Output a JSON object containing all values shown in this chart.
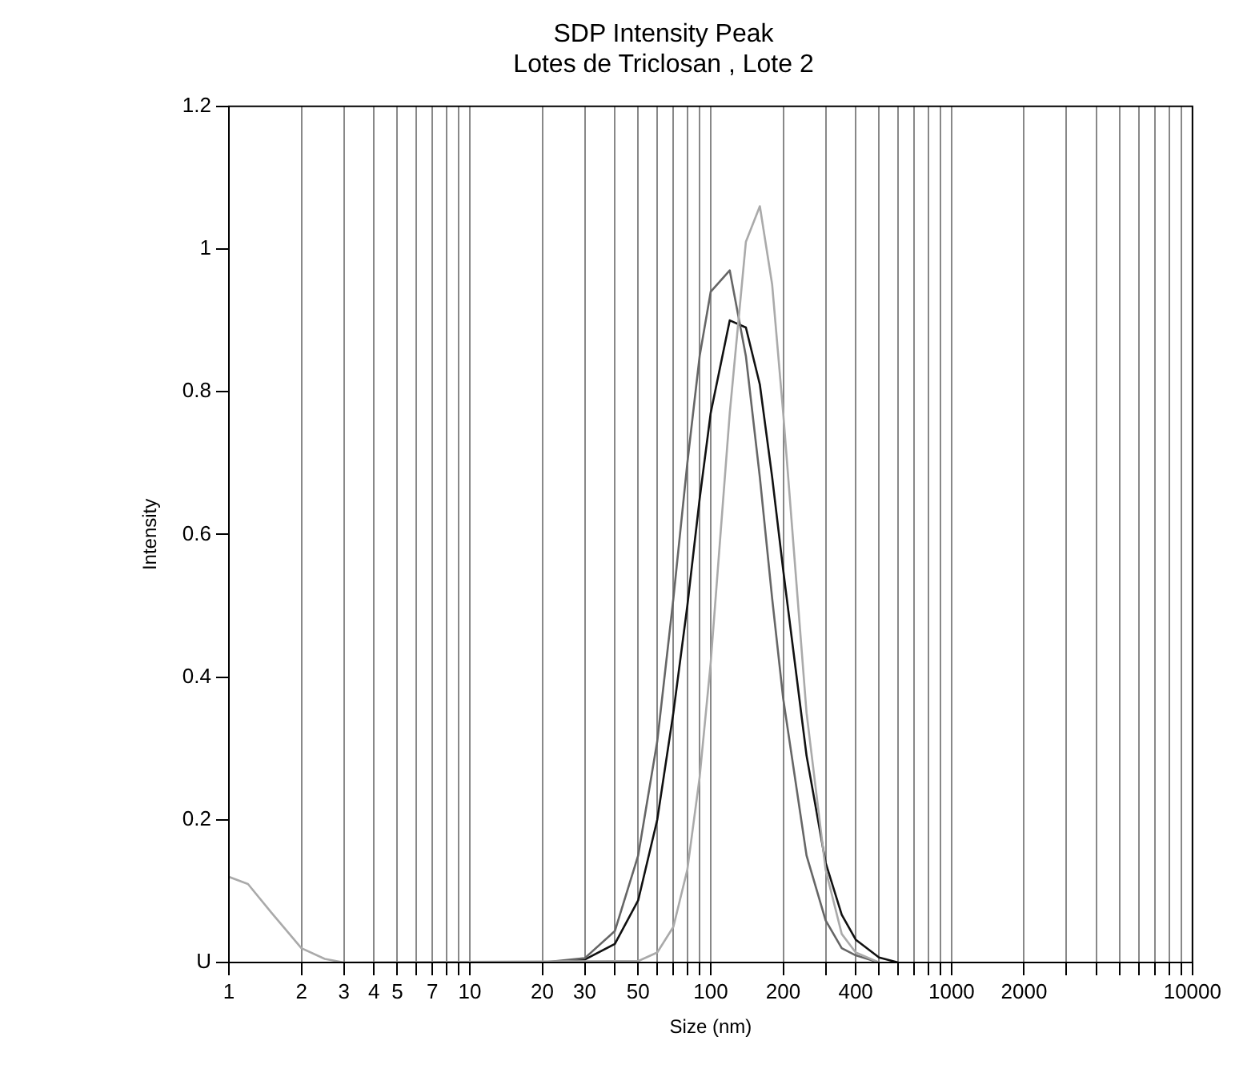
{
  "chart_data": {
    "type": "line",
    "title": "SDP Intensity Peak",
    "subtitle": "Lotes de Triclosan , Lote 2",
    "xlabel": "Size (nm)",
    "ylabel": "Intensity",
    "log": "x",
    "grid": "x",
    "legend": false,
    "marker": "none",
    "line_style": "solid",
    "xlim": [
      1,
      10000
    ],
    "ylim": [
      0,
      1.2
    ],
    "xticks": [
      1,
      2,
      3,
      {
        "value": 4,
        "label": "4"
      },
      5,
      {
        "value": 6,
        "label": null
      },
      7,
      {
        "value": 8,
        "label": null
      },
      {
        "value": 9,
        "label": null
      },
      10,
      20,
      30,
      {
        "value": 40,
        "label": null
      },
      50,
      {
        "value": 60,
        "label": null
      },
      {
        "value": 70,
        "label": null
      },
      {
        "value": 80,
        "label": null
      },
      {
        "value": 90,
        "label": null
      },
      100,
      200,
      {
        "value": 300,
        "label": null
      },
      400,
      {
        "value": 500,
        "label": null
      },
      {
        "value": 600,
        "label": null
      },
      {
        "value": 700,
        "label": null
      },
      {
        "value": 800,
        "label": null
      },
      {
        "value": 900,
        "label": null
      },
      1000,
      2000,
      {
        "value": 3000,
        "label": null
      },
      {
        "value": 4000,
        "label": null
      },
      {
        "value": 5000,
        "label": null
      },
      {
        "value": 6000,
        "label": null
      },
      {
        "value": 7000,
        "label": null
      },
      {
        "value": 8000,
        "label": null
      },
      {
        "value": 9000,
        "label": null
      },
      10000
    ],
    "yticks": [
      {
        "value": 0,
        "label": "U"
      },
      0.2,
      0.4,
      0.6,
      0.8,
      1,
      1.2
    ],
    "series": [
      {
        "color": "#aaaaaa",
        "x": [
          1,
          1.2,
          1.5,
          2,
          2.5,
          3,
          50,
          60,
          70,
          80,
          90,
          100,
          120,
          140,
          160,
          180,
          200,
          250,
          300,
          350,
          400,
          500
        ],
        "values": [
          0.12,
          0.11,
          0.07,
          0.02,
          0.005,
          0,
          0.002,
          0.014,
          0.05,
          0.13,
          0.26,
          0.42,
          0.77,
          1.01,
          1.06,
          0.95,
          0.77,
          0.35,
          0.13,
          0.04,
          0.014,
          0
        ]
      },
      {
        "color": "#666666",
        "x": [
          20,
          30,
          40,
          50,
          60,
          70,
          80,
          90,
          100,
          120,
          140,
          160,
          180,
          200,
          250,
          300,
          350,
          400,
          500
        ],
        "values": [
          0,
          0.006,
          0.044,
          0.15,
          0.31,
          0.51,
          0.7,
          0.85,
          0.94,
          0.97,
          0.85,
          0.68,
          0.51,
          0.37,
          0.15,
          0.059,
          0.02,
          0.01,
          0
        ]
      },
      {
        "color": "#111111",
        "x": [
          20,
          30,
          40,
          50,
          60,
          70,
          80,
          90,
          100,
          120,
          140,
          160,
          180,
          200,
          250,
          300,
          350,
          400,
          500,
          600
        ],
        "values": [
          0,
          0.004,
          0.026,
          0.087,
          0.2,
          0.35,
          0.5,
          0.65,
          0.77,
          0.9,
          0.89,
          0.81,
          0.68,
          0.55,
          0.29,
          0.14,
          0.067,
          0.032,
          0.007,
          0
        ]
      }
    ]
  }
}
